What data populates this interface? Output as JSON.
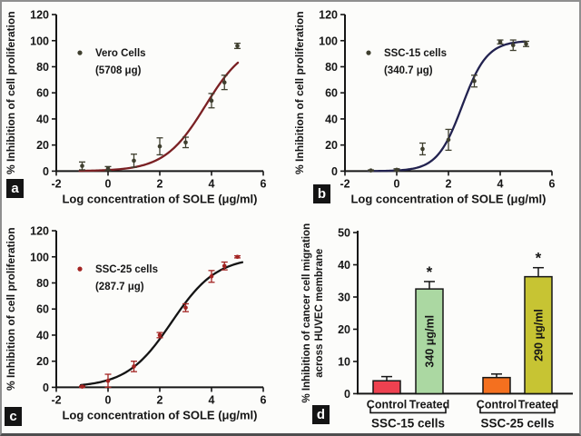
{
  "figure": {
    "background": "#fcfcfa",
    "border_color": "#8f8f8f",
    "panels": [
      {
        "letter": "a"
      },
      {
        "letter": "b"
      },
      {
        "letter": "c"
      },
      {
        "letter": "d"
      }
    ]
  },
  "chart_data": [
    {
      "type": "scatter",
      "panel": "a",
      "legend": [
        "Vero Cells",
        "(5708 μg)"
      ],
      "xlabel": "Log concentration of SOLE (μg/ml)",
      "ylabel": "% Inhibition of cell proliferation",
      "xlim": [
        -2,
        6
      ],
      "ylim": [
        0,
        120
      ],
      "xticks": [
        -2,
        0,
        2,
        4,
        6
      ],
      "yticks": [
        0,
        20,
        40,
        60,
        80,
        100,
        120
      ],
      "x": [
        -1,
        0,
        1,
        2,
        3,
        4,
        4.5,
        5
      ],
      "y": [
        4,
        2,
        8,
        19,
        22,
        54,
        68,
        96
      ],
      "yerr": [
        3,
        1.5,
        5,
        6.5,
        4,
        5.5,
        5.5,
        2
      ],
      "fit": {
        "logEC50": 3.76,
        "hill": 0.55,
        "top": 100,
        "bottom": 0
      },
      "curve_range": [
        -1.1,
        5.05
      ],
      "marker_color": "#3f3f2f",
      "curve_color": "#7a2023",
      "grid": false
    },
    {
      "type": "scatter",
      "panel": "b",
      "legend": [
        "SSC-15 cells",
        "(340.7 μg)"
      ],
      "xlabel": "Log concentration of SOLE (μg/ml)",
      "ylabel": "% Inhibition of cell proliferation",
      "xlim": [
        -2,
        6
      ],
      "ylim": [
        0,
        120
      ],
      "xticks": [
        -2,
        0,
        2,
        4,
        6
      ],
      "yticks": [
        0,
        20,
        40,
        60,
        80,
        100,
        120
      ],
      "x": [
        -1,
        0,
        1,
        2,
        3,
        4,
        4.5,
        5
      ],
      "y": [
        0.5,
        1,
        17,
        24,
        69,
        99,
        96.5,
        97.5
      ],
      "yerr": [
        0.4,
        0.8,
        4.5,
        8,
        4.5,
        1.5,
        4,
        2
      ],
      "fit": {
        "logEC50": 2.53,
        "hill": 0.9,
        "top": 100,
        "bottom": 0
      },
      "curve_range": [
        -1.1,
        5.0
      ],
      "marker_color": "#3f3f2f",
      "curve_color": "#22224f",
      "grid": false
    },
    {
      "type": "scatter",
      "panel": "c",
      "legend": [
        "SSC-25 cells",
        "(287.7 μg)"
      ],
      "xlabel": "Log concentration of SOLE (μg/ml)",
      "ylabel": "% Inhibition of cell proliferation",
      "xlim": [
        -2,
        6
      ],
      "ylim": [
        0,
        120
      ],
      "xticks": [
        -2,
        0,
        2,
        4,
        6
      ],
      "yticks": [
        0,
        20,
        40,
        60,
        80,
        100,
        120
      ],
      "x": [
        -1,
        0,
        1,
        2,
        3,
        4,
        4.5,
        5
      ],
      "y": [
        0.5,
        5,
        16,
        40,
        61,
        85,
        93,
        100
      ],
      "yerr": [
        0.5,
        5,
        4,
        2,
        3,
        4.5,
        3,
        0.8
      ],
      "fit": {
        "logEC50": 2.46,
        "hill": 0.5,
        "top": 100,
        "bottom": 0
      },
      "curve_range": [
        -1.05,
        5.2
      ],
      "marker_color": "#a32422",
      "curve_color": "#141414",
      "grid": false
    },
    {
      "type": "bar",
      "panel": "d",
      "ylabel_lines": [
        "% Inhibition of cancer cell migration",
        "across HUVEC membrane"
      ],
      "ylim": [
        0,
        50
      ],
      "yticks": [
        0,
        10,
        20,
        30,
        40,
        50
      ],
      "categories": [
        "Control",
        "Treated",
        "Control",
        "Treated"
      ],
      "values": [
        4,
        32.5,
        5,
        36.3
      ],
      "errors": [
        1.3,
        2.3,
        1.1,
        2.8
      ],
      "bar_colors": [
        "#ee4150",
        "#abd8a2",
        "#f4701f",
        "#c7c433"
      ],
      "annotations": [
        "",
        "340 μg/ml",
        "",
        "290 μg/ml"
      ],
      "significance": [
        "",
        "*",
        "",
        "*"
      ],
      "group_of_bar": [
        0,
        0,
        1,
        1
      ],
      "groups": [
        "SSC-15 cells",
        "SSC-25 cells"
      ],
      "grid": false,
      "legend_position": "none"
    }
  ]
}
